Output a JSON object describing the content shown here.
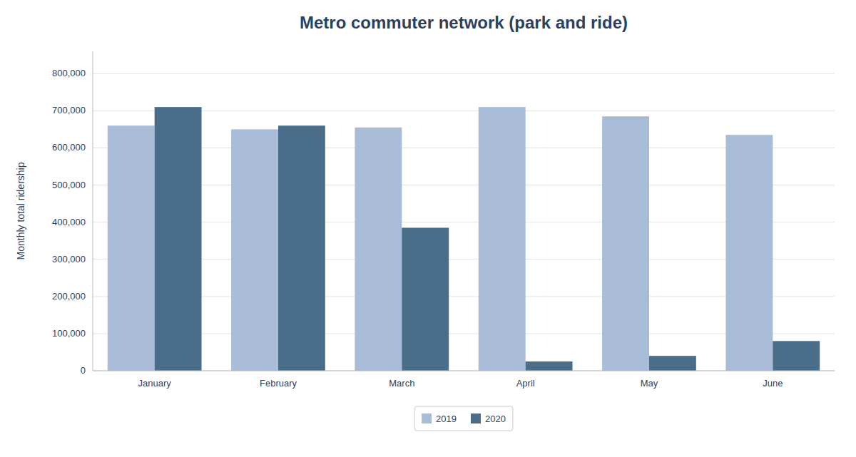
{
  "chart_data": {
    "type": "bar",
    "title": "Metro commuter network (park and ride)",
    "ylabel": "Monthly total ridership",
    "categories": [
      "January",
      "February",
      "March",
      "April",
      "May",
      "June"
    ],
    "series": [
      {
        "name": "2019",
        "color": "#a8bcd8",
        "values": [
          660000,
          650000,
          655000,
          710000,
          685000,
          635000
        ]
      },
      {
        "name": "2020",
        "color": "#4a6e8a",
        "values": [
          710000,
          660000,
          385000,
          25000,
          40000,
          80000
        ]
      }
    ],
    "ylim": [
      0,
      860000
    ],
    "yticks": [
      0,
      {
        "value": 100000,
        "label": "100,000"
      },
      {
        "value": 200000,
        "label": "200,000"
      },
      {
        "value": 300000,
        "label": "300,000"
      },
      {
        "value": 400000,
        "label": "400,000"
      },
      {
        "value": 500000,
        "label": "500,000"
      },
      {
        "value": 600000,
        "label": "600,000"
      },
      {
        "value": 700000,
        "label": "700,000"
      },
      {
        "value": 800000,
        "label": "800,000"
      }
    ],
    "grid": true,
    "legend": "bottom"
  }
}
